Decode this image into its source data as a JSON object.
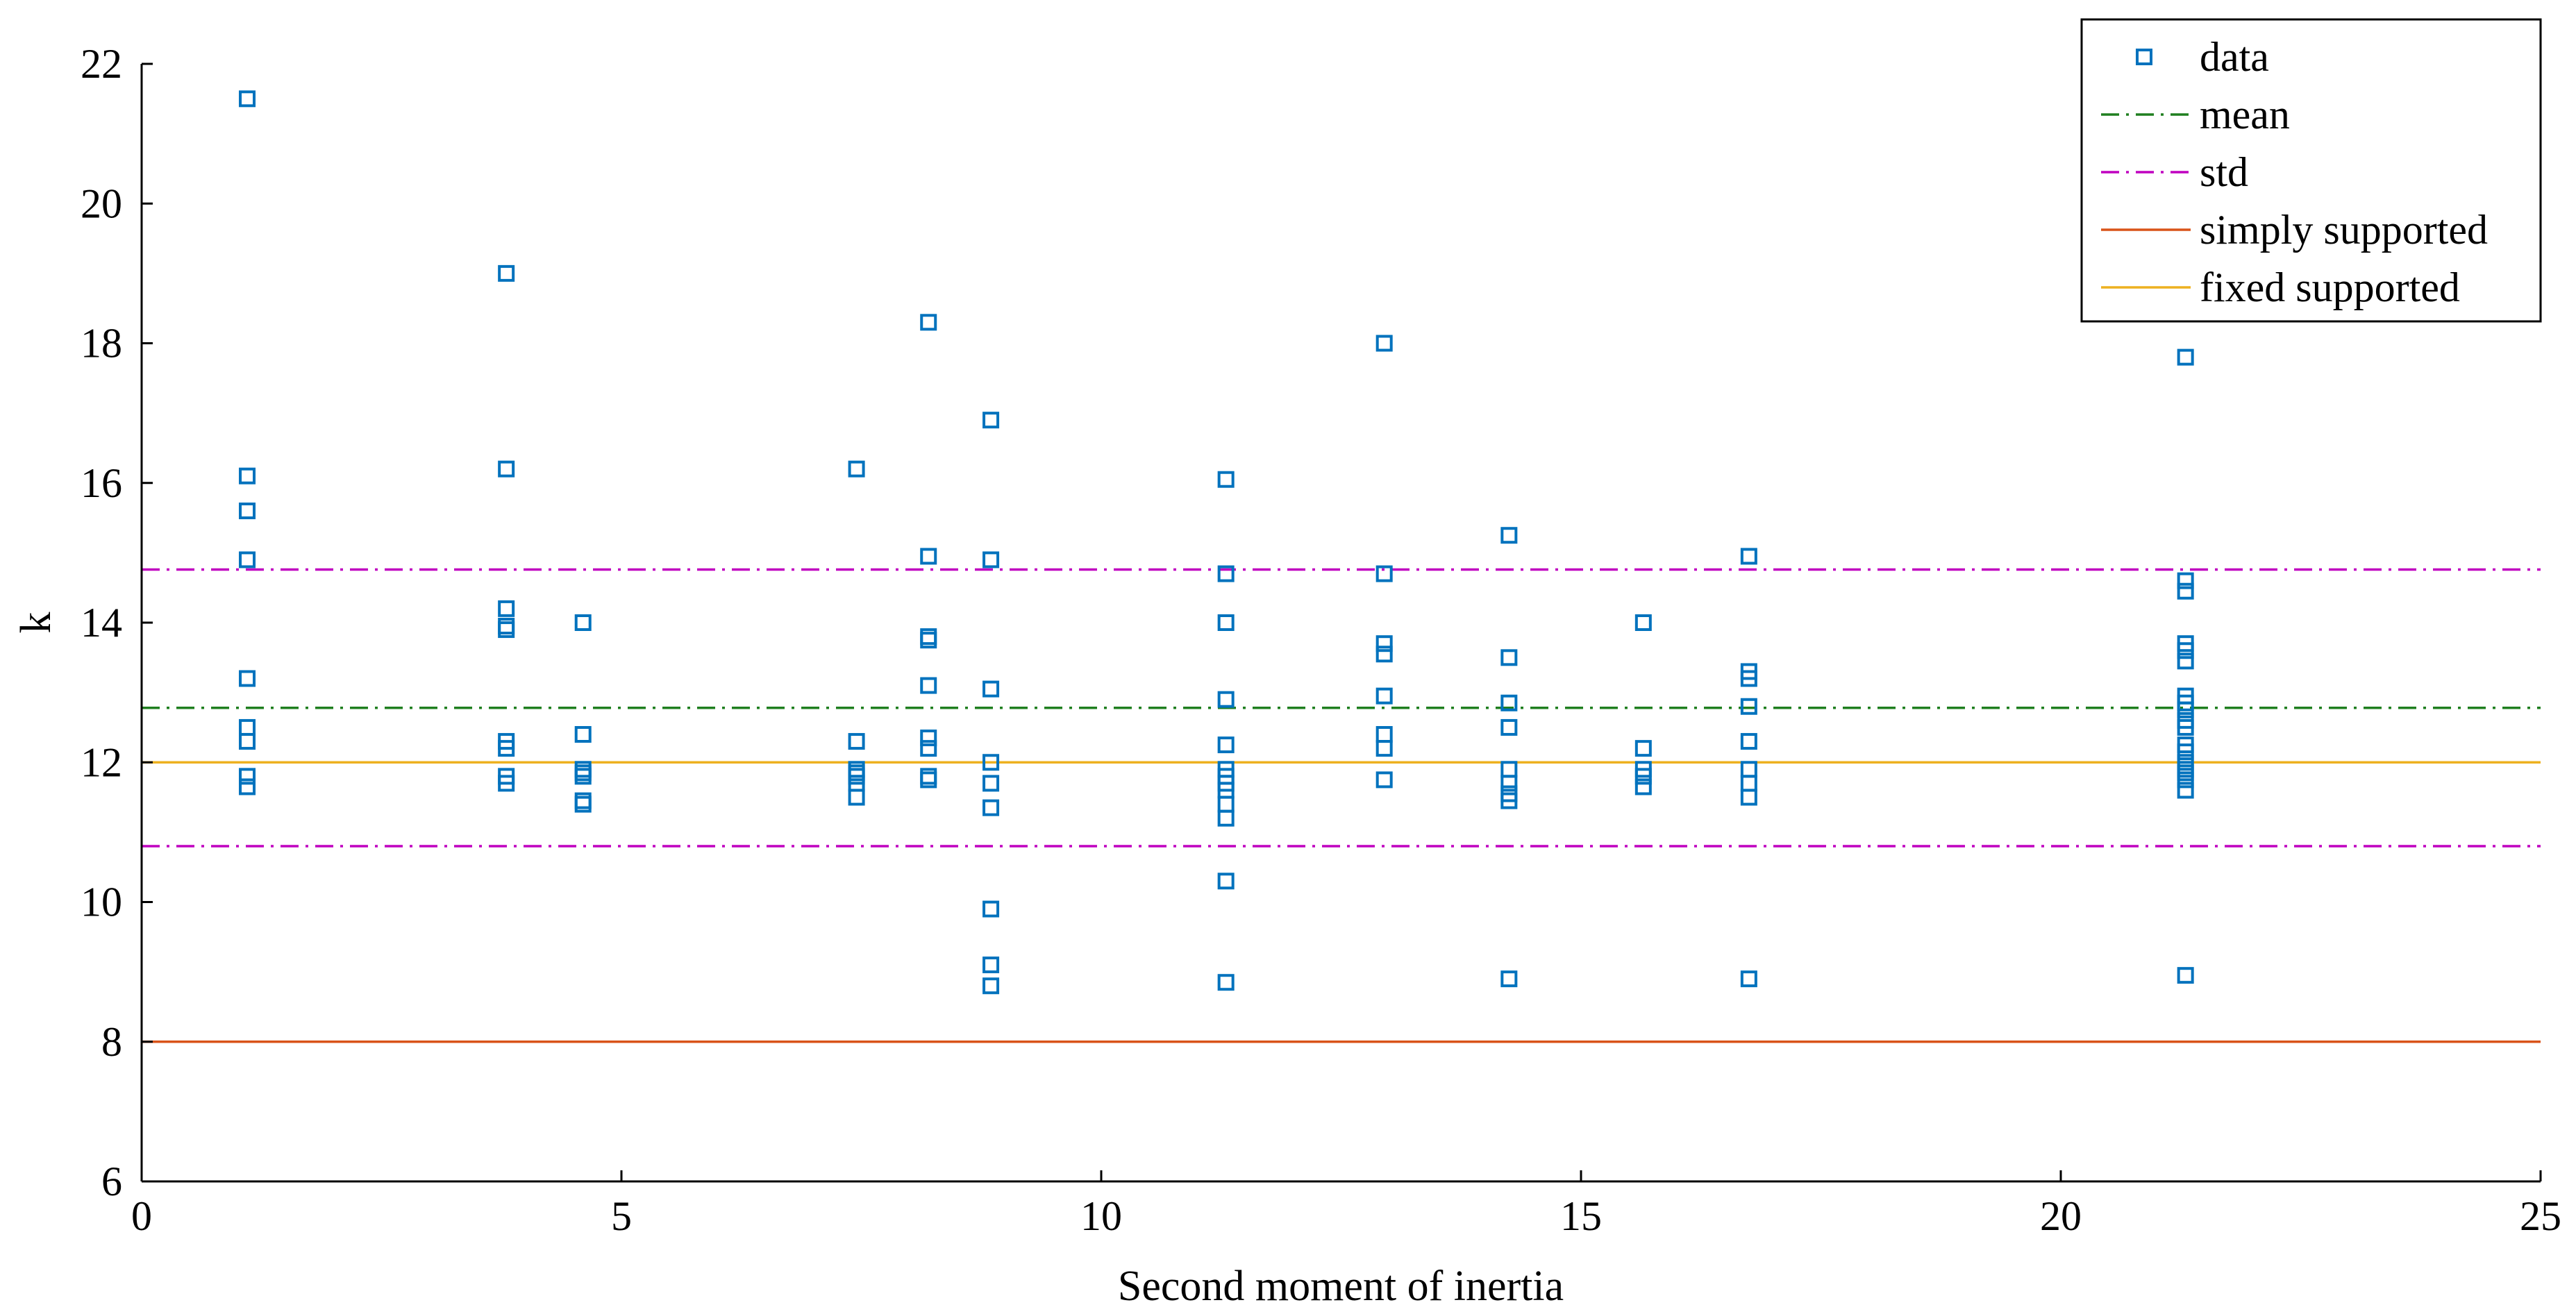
{
  "chart_data": {
    "type": "scatter",
    "xlabel": "Second moment of inertia",
    "ylabel": "k",
    "xlim": [
      0,
      25
    ],
    "ylim": [
      6,
      22
    ],
    "x_ticks": [
      0,
      5,
      10,
      15,
      20,
      25
    ],
    "y_ticks": [
      6,
      8,
      10,
      12,
      14,
      16,
      18,
      20,
      22
    ],
    "legend_position": "top-right",
    "colors": {
      "data": "#0072BD",
      "mean": "#1f7f1f",
      "std": "#C000C0",
      "simply_supported": "#D95319",
      "fixed_supported": "#EDB120"
    },
    "series": [
      {
        "name": "data",
        "style": "square-marker",
        "points": [
          [
            1.1,
            21.5
          ],
          [
            1.1,
            16.1
          ],
          [
            1.1,
            15.6
          ],
          [
            1.1,
            14.9
          ],
          [
            1.1,
            13.2
          ],
          [
            1.1,
            12.5
          ],
          [
            1.1,
            12.3
          ],
          [
            1.1,
            11.8
          ],
          [
            1.1,
            11.65
          ],
          [
            3.8,
            19.0
          ],
          [
            3.8,
            16.2
          ],
          [
            3.8,
            14.2
          ],
          [
            3.8,
            13.95
          ],
          [
            3.8,
            13.9
          ],
          [
            3.8,
            12.3
          ],
          [
            3.8,
            12.2
          ],
          [
            3.8,
            11.8
          ],
          [
            3.8,
            11.7
          ],
          [
            4.6,
            14.0
          ],
          [
            4.6,
            12.4
          ],
          [
            4.6,
            11.9
          ],
          [
            4.6,
            11.85
          ],
          [
            4.6,
            11.8
          ],
          [
            4.6,
            11.45
          ],
          [
            4.6,
            11.4
          ],
          [
            7.45,
            16.2
          ],
          [
            7.45,
            12.3
          ],
          [
            7.45,
            11.9
          ],
          [
            7.45,
            11.85
          ],
          [
            7.45,
            11.8
          ],
          [
            7.45,
            11.7
          ],
          [
            7.45,
            11.5
          ],
          [
            8.2,
            18.3
          ],
          [
            8.2,
            14.95
          ],
          [
            8.2,
            13.8
          ],
          [
            8.2,
            13.75
          ],
          [
            8.2,
            13.1
          ],
          [
            8.2,
            12.35
          ],
          [
            8.2,
            12.2
          ],
          [
            8.2,
            11.8
          ],
          [
            8.2,
            11.75
          ],
          [
            8.85,
            16.9
          ],
          [
            8.85,
            14.9
          ],
          [
            8.85,
            13.05
          ],
          [
            8.85,
            12.0
          ],
          [
            8.85,
            11.7
          ],
          [
            8.85,
            11.35
          ],
          [
            8.85,
            9.9
          ],
          [
            8.85,
            9.1
          ],
          [
            8.85,
            8.8
          ],
          [
            11.3,
            16.05
          ],
          [
            11.3,
            14.7
          ],
          [
            11.3,
            14.0
          ],
          [
            11.3,
            12.9
          ],
          [
            11.3,
            12.25
          ],
          [
            11.3,
            11.9
          ],
          [
            11.3,
            11.8
          ],
          [
            11.3,
            11.7
          ],
          [
            11.3,
            11.6
          ],
          [
            11.3,
            11.4
          ],
          [
            11.3,
            11.2
          ],
          [
            11.3,
            10.3
          ],
          [
            11.3,
            8.85
          ],
          [
            12.95,
            18.0
          ],
          [
            12.95,
            14.7
          ],
          [
            12.95,
            13.7
          ],
          [
            12.95,
            13.55
          ],
          [
            12.95,
            12.95
          ],
          [
            12.95,
            12.4
          ],
          [
            12.95,
            12.2
          ],
          [
            12.95,
            11.75
          ],
          [
            14.25,
            15.25
          ],
          [
            14.25,
            13.5
          ],
          [
            14.25,
            12.85
          ],
          [
            14.25,
            12.5
          ],
          [
            14.25,
            11.9
          ],
          [
            14.25,
            11.7
          ],
          [
            14.25,
            11.55
          ],
          [
            14.25,
            11.45
          ],
          [
            14.25,
            8.9
          ],
          [
            15.65,
            14.0
          ],
          [
            15.65,
            12.2
          ],
          [
            15.65,
            11.9
          ],
          [
            15.65,
            11.8
          ],
          [
            15.65,
            11.65
          ],
          [
            16.75,
            14.95
          ],
          [
            16.75,
            13.3
          ],
          [
            16.75,
            13.2
          ],
          [
            16.75,
            12.8
          ],
          [
            16.75,
            12.3
          ],
          [
            16.75,
            11.9
          ],
          [
            16.75,
            11.7
          ],
          [
            16.75,
            11.5
          ],
          [
            16.75,
            8.9
          ],
          [
            21.3,
            17.8
          ],
          [
            21.3,
            14.6
          ],
          [
            21.3,
            14.45
          ],
          [
            21.3,
            13.7
          ],
          [
            21.3,
            13.6
          ],
          [
            21.3,
            13.45
          ],
          [
            21.3,
            12.95
          ],
          [
            21.3,
            12.85
          ],
          [
            21.3,
            12.75
          ],
          [
            21.3,
            12.6
          ],
          [
            21.3,
            12.5
          ],
          [
            21.3,
            12.25
          ],
          [
            21.3,
            12.15
          ],
          [
            21.3,
            12.0
          ],
          [
            21.3,
            11.9
          ],
          [
            21.3,
            11.85
          ],
          [
            21.3,
            11.75
          ],
          [
            21.3,
            11.6
          ],
          [
            21.3,
            8.95
          ]
        ]
      },
      {
        "name": "mean",
        "style": "dash-dot",
        "y": 12.78
      },
      {
        "name": "std",
        "style": "dash-dot",
        "y": [
          14.76,
          10.8
        ]
      },
      {
        "name": "simply supported",
        "style": "solid",
        "y": 8.0
      },
      {
        "name": "fixed supported",
        "style": "solid",
        "y": 12.0
      }
    ],
    "legend": [
      "data",
      "mean",
      "std",
      "simply supported",
      "fixed supported"
    ]
  }
}
